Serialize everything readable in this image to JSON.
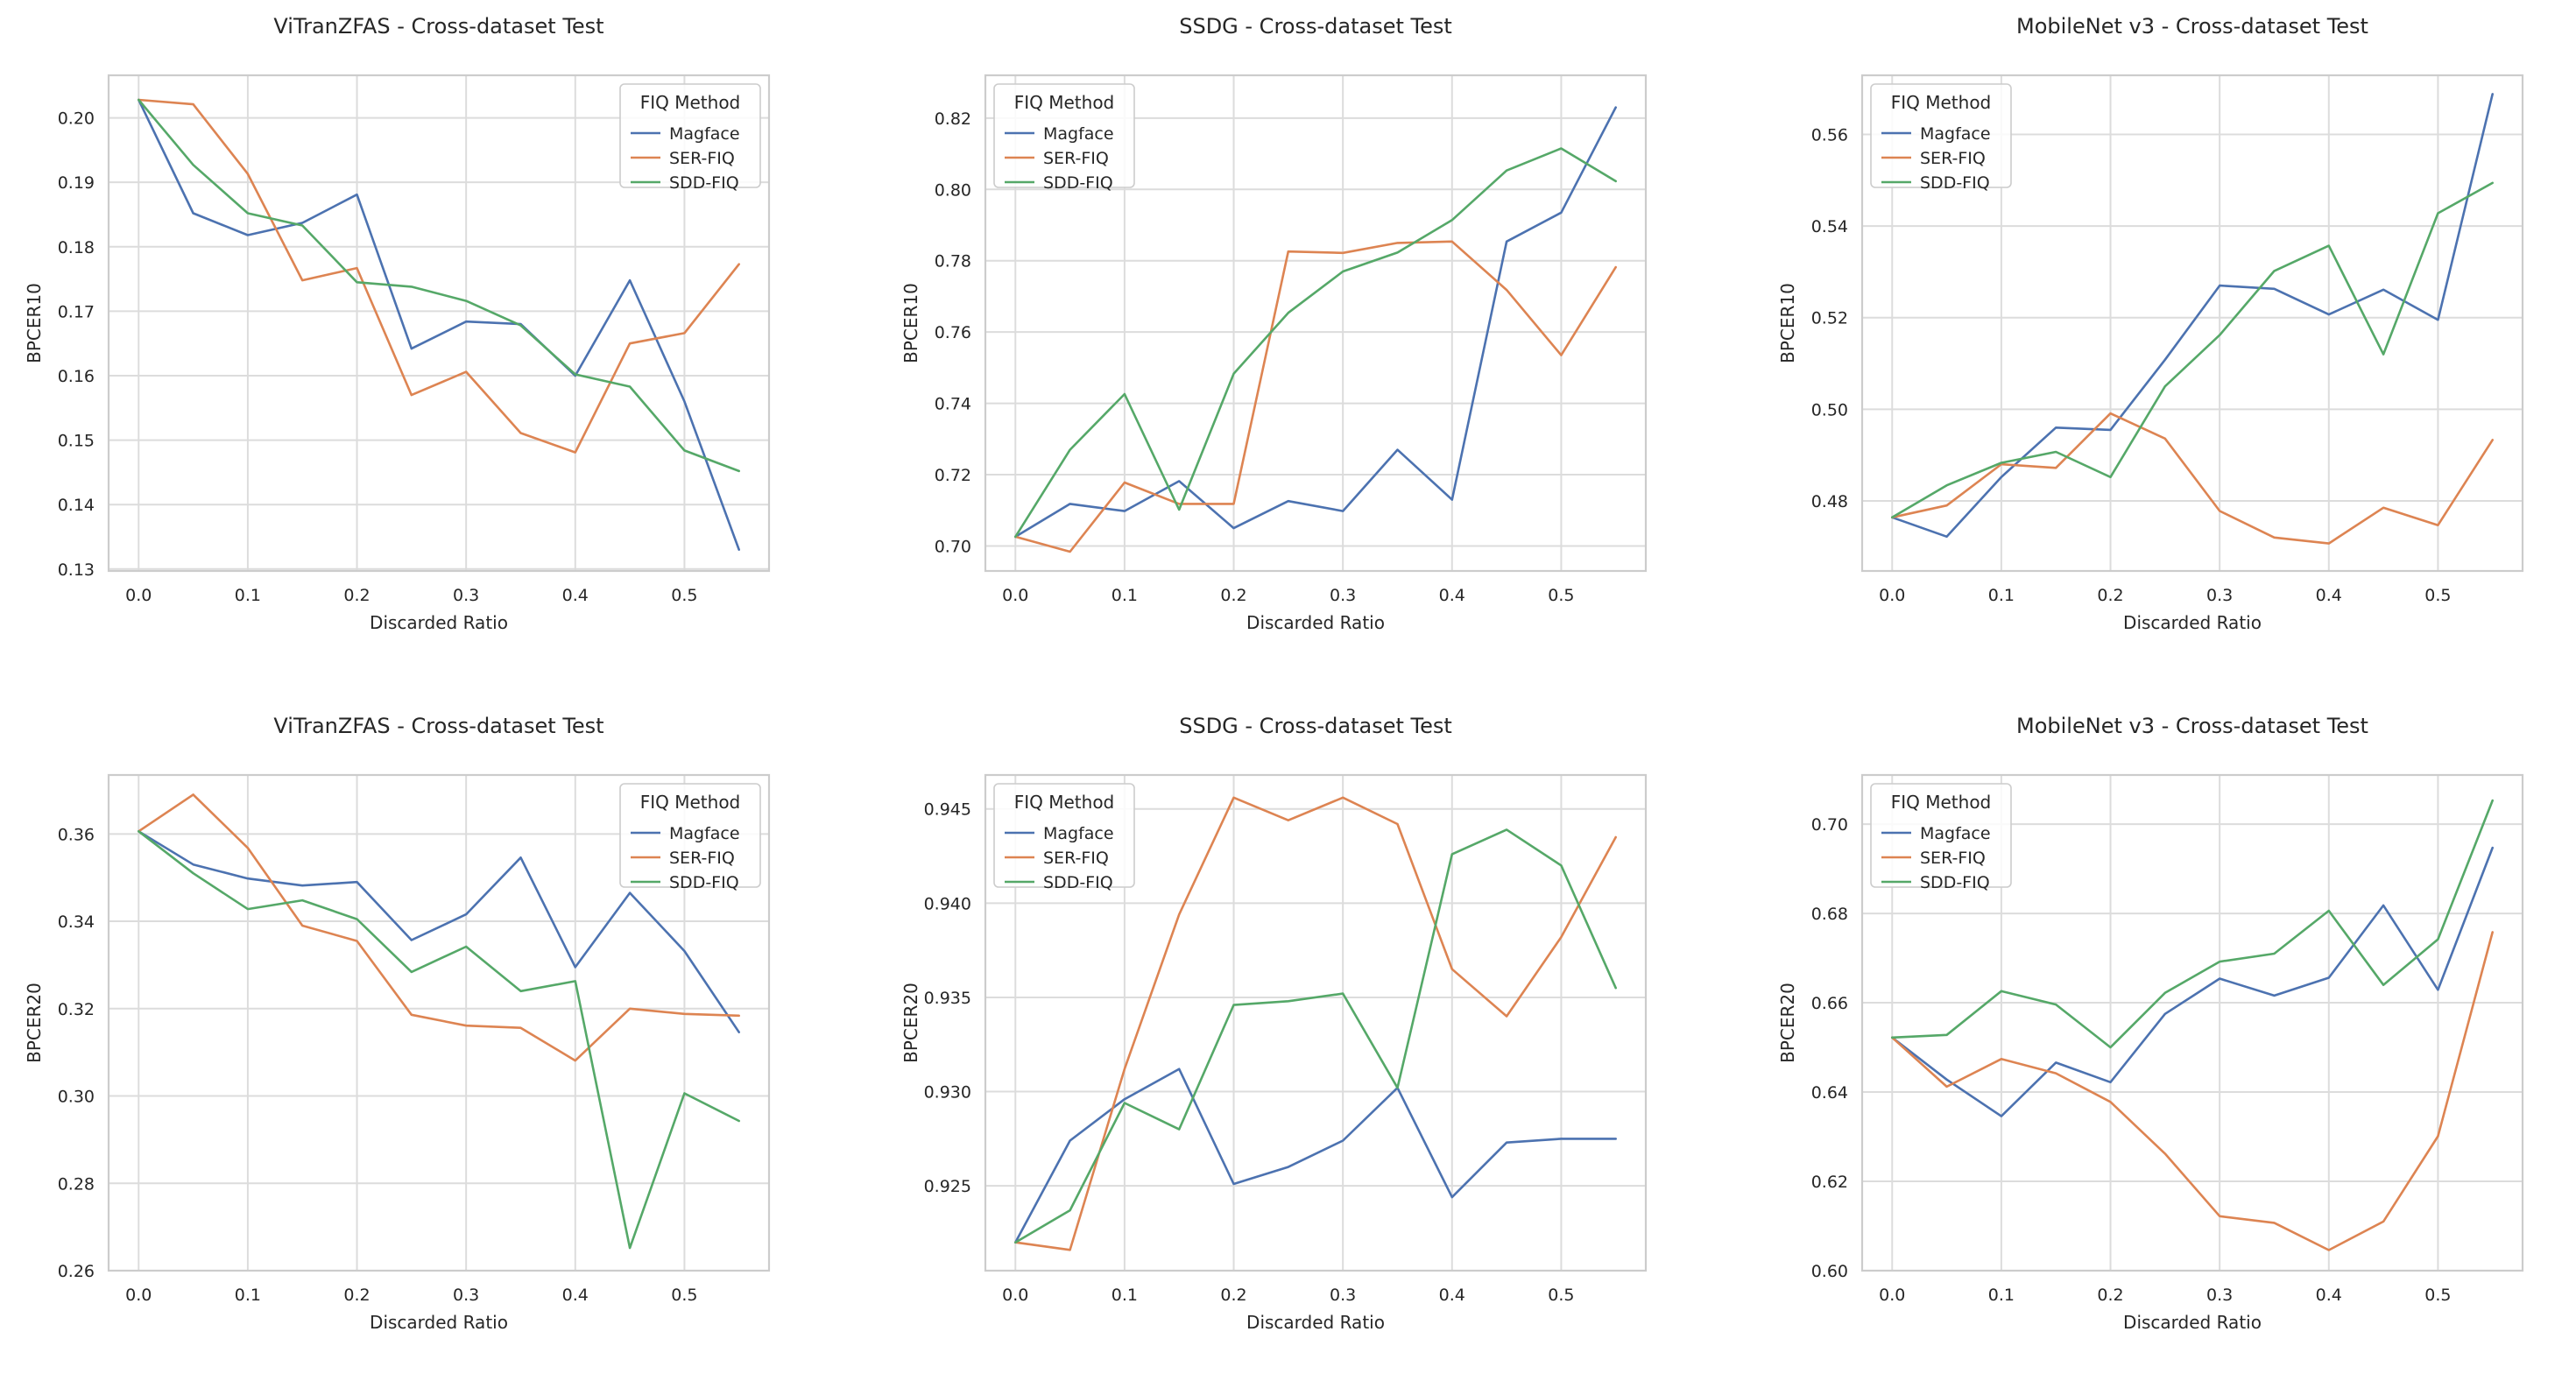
{
  "figure": {
    "name": "fiq-cross-dataset-grid"
  },
  "chart_data": [
    {
      "type": "line",
      "title": "ViTranZFAS - Cross-dataset Test",
      "xlabel": "Discarded Ratio",
      "ylabel": "BPCER10",
      "x": [
        0.0,
        0.05,
        0.1,
        0.15,
        0.2,
        0.25,
        0.3,
        0.35,
        0.4,
        0.45,
        0.5,
        0.55
      ],
      "xlim": [
        -0.0275,
        0.5775
      ],
      "xticks": [
        0.0,
        0.1,
        0.2,
        0.3,
        0.4,
        0.5
      ],
      "xtick_labels": [
        "0.0",
        "0.1",
        "0.2",
        "0.3",
        "0.4",
        "0.5"
      ],
      "ylim": [
        0.1297,
        0.2066
      ],
      "yticks": [
        0.13,
        0.14,
        0.15,
        0.16,
        0.17,
        0.18,
        0.19,
        0.2
      ],
      "ytick_labels": [
        "0.13",
        "0.14",
        "0.15",
        "0.16",
        "0.17",
        "0.18",
        "0.19",
        "0.20"
      ],
      "grid": true,
      "legend": {
        "title": "FIQ Method",
        "position": "top-right"
      },
      "series": [
        {
          "name": "Magface",
          "color": "#4c72b0",
          "values": [
            0.2028,
            0.1852,
            0.1818,
            0.1837,
            0.1881,
            0.1642,
            0.1684,
            0.168,
            0.16,
            0.1748,
            0.156,
            0.133
          ]
        },
        {
          "name": "SER-FIQ",
          "color": "#dd8452",
          "values": [
            0.2028,
            0.2021,
            0.1913,
            0.1748,
            0.1767,
            0.157,
            0.1606,
            0.1511,
            0.1481,
            0.165,
            0.1666,
            0.1773
          ]
        },
        {
          "name": "SDD-FIQ",
          "color": "#55a868",
          "values": [
            0.2028,
            0.1927,
            0.1852,
            0.1833,
            0.1745,
            0.1738,
            0.1716,
            0.1678,
            0.1602,
            0.1583,
            0.1484,
            0.1452
          ]
        }
      ]
    },
    {
      "type": "line",
      "title": "SSDG - Cross-dataset Test",
      "xlabel": "Discarded Ratio",
      "ylabel": "BPCER10",
      "x": [
        0.0,
        0.05,
        0.1,
        0.15,
        0.2,
        0.25,
        0.3,
        0.35,
        0.4,
        0.45,
        0.5,
        0.55
      ],
      "xlim": [
        -0.0275,
        0.5775
      ],
      "xticks": [
        0.0,
        0.1,
        0.2,
        0.3,
        0.4,
        0.5
      ],
      "xtick_labels": [
        "0.0",
        "0.1",
        "0.2",
        "0.3",
        "0.4",
        "0.5"
      ],
      "ylim": [
        0.693,
        0.832
      ],
      "yticks": [
        0.7,
        0.72,
        0.74,
        0.76,
        0.78,
        0.8,
        0.82
      ],
      "ytick_labels": [
        "0.70",
        "0.72",
        "0.74",
        "0.76",
        "0.78",
        "0.80",
        "0.82"
      ],
      "grid": true,
      "legend": {
        "title": "FIQ Method",
        "position": "top-left"
      },
      "series": [
        {
          "name": "Magface",
          "color": "#4c72b0",
          "values": [
            0.7026,
            0.7118,
            0.7098,
            0.7182,
            0.705,
            0.7126,
            0.7098,
            0.727,
            0.713,
            0.7854,
            0.7935,
            0.823
          ]
        },
        {
          "name": "SER-FIQ",
          "color": "#dd8452",
          "values": [
            0.7026,
            0.6984,
            0.7178,
            0.7118,
            0.7118,
            0.7826,
            0.7822,
            0.785,
            0.7854,
            0.7718,
            0.7535,
            0.7782
          ]
        },
        {
          "name": "SDD-FIQ",
          "color": "#55a868",
          "values": [
            0.7026,
            0.727,
            0.7426,
            0.7102,
            0.7483,
            0.7654,
            0.777,
            0.7823,
            0.7914,
            0.8053,
            0.8115,
            0.8023
          ]
        }
      ]
    },
    {
      "type": "line",
      "title": "MobileNet v3 - Cross-dataset Test",
      "xlabel": "Discarded Ratio",
      "ylabel": "BPCER10",
      "x": [
        0.0,
        0.05,
        0.1,
        0.15,
        0.2,
        0.25,
        0.3,
        0.35,
        0.4,
        0.45,
        0.5,
        0.55
      ],
      "xlim": [
        -0.0275,
        0.5775
      ],
      "xticks": [
        0.0,
        0.1,
        0.2,
        0.3,
        0.4,
        0.5
      ],
      "xtick_labels": [
        "0.0",
        "0.1",
        "0.2",
        "0.3",
        "0.4",
        "0.5"
      ],
      "ylim": [
        0.4647,
        0.5729
      ],
      "yticks": [
        0.48,
        0.5,
        0.52,
        0.54,
        0.56
      ],
      "ytick_labels": [
        "0.48",
        "0.50",
        "0.52",
        "0.54",
        "0.56"
      ],
      "grid": true,
      "legend": {
        "title": "FIQ Method",
        "position": "top-left"
      },
      "series": [
        {
          "name": "Magface",
          "color": "#4c72b0",
          "values": [
            0.4764,
            0.4722,
            0.4852,
            0.496,
            0.4955,
            0.5108,
            0.527,
            0.5263,
            0.5207,
            0.5261,
            0.5195,
            0.5688
          ]
        },
        {
          "name": "SER-FIQ",
          "color": "#dd8452",
          "values": [
            0.4764,
            0.479,
            0.488,
            0.4872,
            0.4991,
            0.4936,
            0.4778,
            0.472,
            0.4707,
            0.4785,
            0.4747,
            0.4933
          ]
        },
        {
          "name": "SDD-FIQ",
          "color": "#55a868",
          "values": [
            0.4764,
            0.4834,
            0.4883,
            0.4907,
            0.4852,
            0.505,
            0.5162,
            0.5302,
            0.5357,
            0.512,
            0.5428,
            0.5494
          ]
        }
      ]
    },
    {
      "type": "line",
      "title": "ViTranZFAS - Cross-dataset Test",
      "xlabel": "Discarded Ratio",
      "ylabel": "BPCER20",
      "x": [
        0.0,
        0.05,
        0.1,
        0.15,
        0.2,
        0.25,
        0.3,
        0.35,
        0.4,
        0.45,
        0.5,
        0.55
      ],
      "xlim": [
        -0.0275,
        0.5775
      ],
      "xticks": [
        0.0,
        0.1,
        0.2,
        0.3,
        0.4,
        0.5
      ],
      "xtick_labels": [
        "0.0",
        "0.1",
        "0.2",
        "0.3",
        "0.4",
        "0.5"
      ],
      "ylim": [
        0.26,
        0.3735
      ],
      "yticks": [
        0.26,
        0.28,
        0.3,
        0.32,
        0.34,
        0.36
      ],
      "ytick_labels": [
        "0.26",
        "0.28",
        "0.30",
        "0.32",
        "0.34",
        "0.36"
      ],
      "grid": true,
      "legend": {
        "title": "FIQ Method",
        "position": "top-right"
      },
      "series": [
        {
          "name": "Magface",
          "color": "#4c72b0",
          "values": [
            0.3606,
            0.353,
            0.3498,
            0.3482,
            0.349,
            0.3357,
            0.3416,
            0.3546,
            0.3295,
            0.3465,
            0.3332,
            0.3146
          ]
        },
        {
          "name": "SER-FIQ",
          "color": "#dd8452",
          "values": [
            0.3606,
            0.369,
            0.3568,
            0.339,
            0.3355,
            0.3186,
            0.3161,
            0.3156,
            0.3081,
            0.32,
            0.3188,
            0.3184
          ]
        },
        {
          "name": "SDD-FIQ",
          "color": "#55a868",
          "values": [
            0.3606,
            0.351,
            0.3428,
            0.3448,
            0.3405,
            0.3284,
            0.3342,
            0.324,
            0.3263,
            0.2652,
            0.3006,
            0.2943
          ]
        }
      ]
    },
    {
      "type": "line",
      "title": "SSDG - Cross-dataset Test",
      "xlabel": "Discarded Ratio",
      "ylabel": "BPCER20",
      "x": [
        0.0,
        0.05,
        0.1,
        0.15,
        0.2,
        0.25,
        0.3,
        0.35,
        0.4,
        0.45,
        0.5,
        0.55
      ],
      "xlim": [
        -0.0275,
        0.5775
      ],
      "xticks": [
        0.0,
        0.1,
        0.2,
        0.3,
        0.4,
        0.5
      ],
      "xtick_labels": [
        "0.0",
        "0.1",
        "0.2",
        "0.3",
        "0.4",
        "0.5"
      ],
      "ylim": [
        0.9205,
        0.9468
      ],
      "yticks": [
        0.925,
        0.93,
        0.935,
        0.94,
        0.945
      ],
      "ytick_labels": [
        "0.925",
        "0.930",
        "0.935",
        "0.940",
        "0.945"
      ],
      "grid": true,
      "legend": {
        "title": "FIQ Method",
        "position": "top-left"
      },
      "series": [
        {
          "name": "Magface",
          "color": "#4c72b0",
          "values": [
            0.922,
            0.9274,
            0.9296,
            0.9312,
            0.9251,
            0.926,
            0.9274,
            0.9302,
            0.9244,
            0.9273,
            0.9275,
            0.9275
          ]
        },
        {
          "name": "SER-FIQ",
          "color": "#dd8452",
          "values": [
            0.922,
            0.9216,
            0.9312,
            0.9394,
            0.9456,
            0.9444,
            0.9456,
            0.9442,
            0.9365,
            0.934,
            0.9382,
            0.9435
          ]
        },
        {
          "name": "SDD-FIQ",
          "color": "#55a868",
          "values": [
            0.922,
            0.9237,
            0.9294,
            0.928,
            0.9346,
            0.9348,
            0.9352,
            0.9302,
            0.9426,
            0.9439,
            0.942,
            0.9355
          ]
        }
      ]
    },
    {
      "type": "line",
      "title": "MobileNet v3 - Cross-dataset Test",
      "xlabel": "Discarded Ratio",
      "ylabel": "BPCER20",
      "x": [
        0.0,
        0.05,
        0.1,
        0.15,
        0.2,
        0.25,
        0.3,
        0.35,
        0.4,
        0.45,
        0.5,
        0.55
      ],
      "xlim": [
        -0.0275,
        0.5775
      ],
      "xticks": [
        0.0,
        0.1,
        0.2,
        0.3,
        0.4,
        0.5
      ],
      "xtick_labels": [
        "0.0",
        "0.1",
        "0.2",
        "0.3",
        "0.4",
        "0.5"
      ],
      "ylim": [
        0.6,
        0.711
      ],
      "yticks": [
        0.6,
        0.62,
        0.64,
        0.66,
        0.68,
        0.7
      ],
      "ytick_labels": [
        "0.60",
        "0.62",
        "0.64",
        "0.66",
        "0.68",
        "0.70"
      ],
      "grid": true,
      "legend": {
        "title": "FIQ Method",
        "position": "top-left"
      },
      "series": [
        {
          "name": "Magface",
          "color": "#4c72b0",
          "values": [
            0.6522,
            0.6428,
            0.6346,
            0.6466,
            0.6422,
            0.6575,
            0.6654,
            0.6616,
            0.6656,
            0.6818,
            0.6629,
            0.6947
          ]
        },
        {
          "name": "SER-FIQ",
          "color": "#dd8452",
          "values": [
            0.6522,
            0.6412,
            0.6474,
            0.6442,
            0.6378,
            0.6262,
            0.6122,
            0.6107,
            0.6046,
            0.611,
            0.6301,
            0.6758
          ]
        },
        {
          "name": "SDD-FIQ",
          "color": "#55a868",
          "values": [
            0.6522,
            0.6528,
            0.6626,
            0.6596,
            0.65,
            0.6622,
            0.6692,
            0.671,
            0.6806,
            0.664,
            0.6742,
            0.7053
          ]
        }
      ]
    }
  ]
}
